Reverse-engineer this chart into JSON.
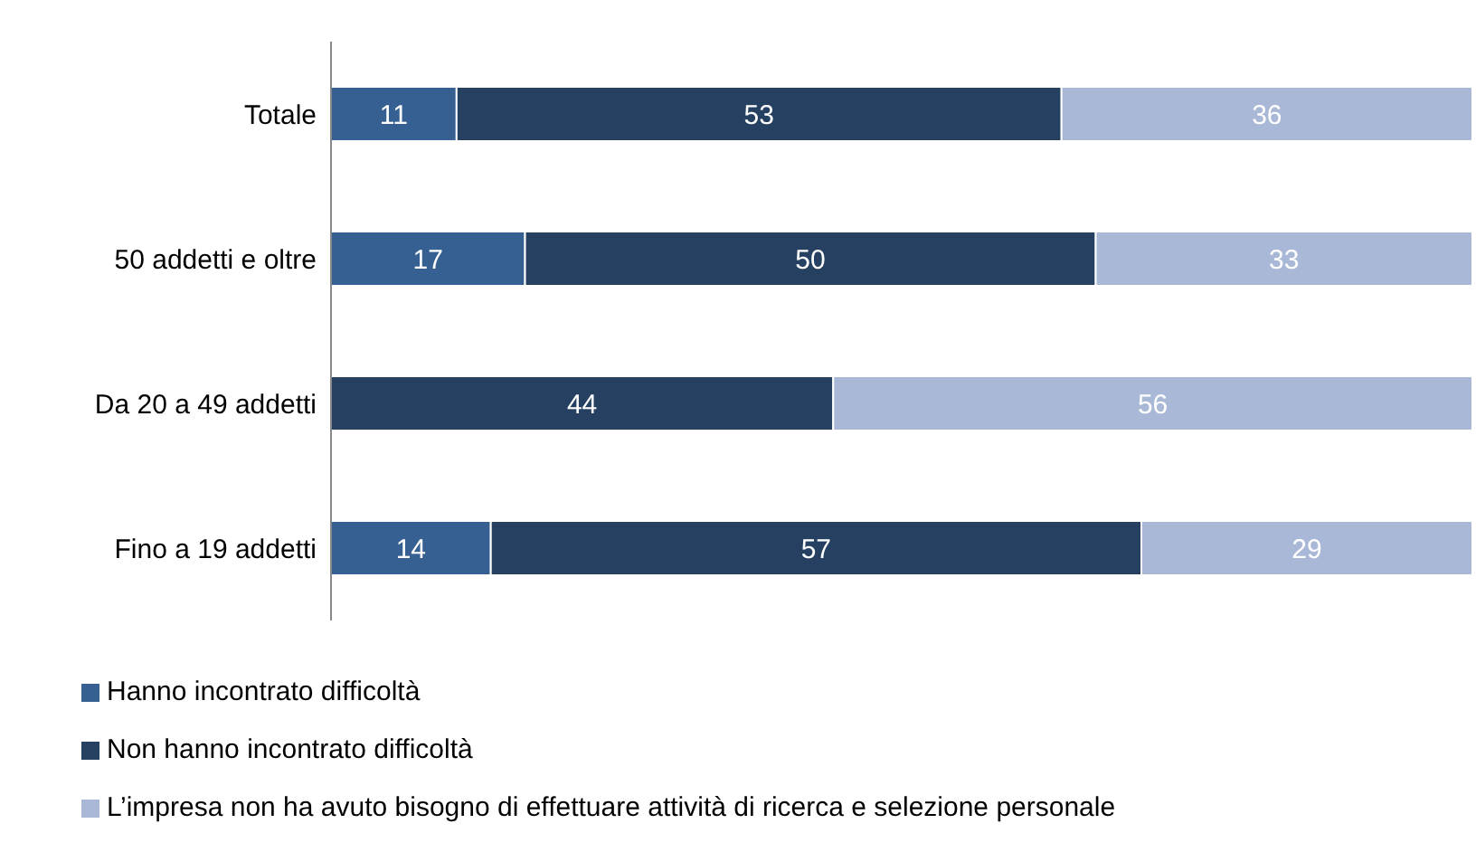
{
  "chart_data": {
    "type": "bar",
    "orientation": "horizontal",
    "stacked": true,
    "data_labels": true,
    "grid": false,
    "legend": "bottom",
    "tick_labels": "y",
    "xlim": [
      0,
      100
    ],
    "categories": [
      "Totale",
      "50 addetti e oltre",
      "Da 20 a 49 addetti",
      "Fino a 19 addetti"
    ],
    "series": [
      {
        "name": "Hanno incontrato difficoltà",
        "color": "#376092",
        "values": [
          11,
          17,
          null,
          14
        ]
      },
      {
        "name": "Non hanno incontrato difficoltà",
        "color": "#254061",
        "values": [
          53,
          50,
          44,
          57
        ]
      },
      {
        "name": "L’impresa non ha avuto bisogno di effettuare attività di ricerca e selezione personale",
        "color": "#a9b8d6",
        "values": [
          36,
          33,
          56,
          29
        ]
      }
    ]
  }
}
